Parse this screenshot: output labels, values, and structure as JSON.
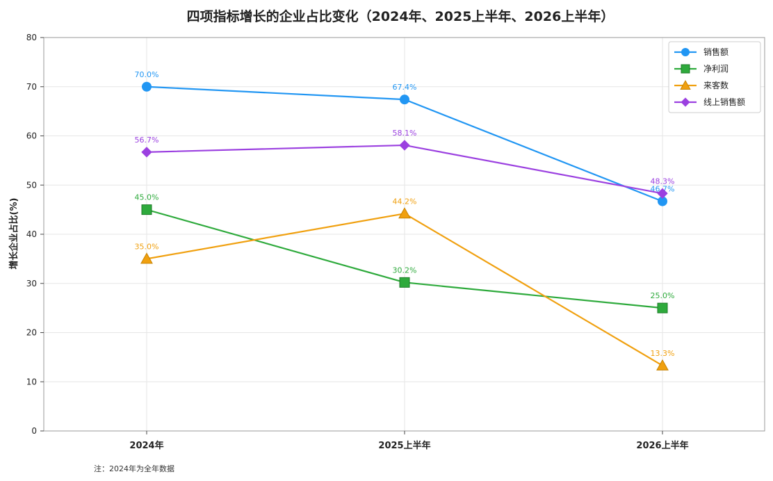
{
  "note": "注：2024年为全年数据",
  "chart_data": {
    "type": "line",
    "title": "四项指标增长的企业占比变化（2024年、2025上半年、2026上半年）",
    "ylabel": "增长企业占比(%)",
    "xlabel": "",
    "categories": [
      "2024年",
      "2025上半年",
      "2026上半年"
    ],
    "ylim": [
      0,
      80
    ],
    "yticks": [
      0,
      10,
      20,
      30,
      40,
      50,
      60,
      70,
      80
    ],
    "grid": true,
    "legend_position": "top-right",
    "series": [
      {
        "name": "销售额",
        "values": [
          70.0,
          67.4,
          46.7
        ],
        "labels": [
          "70.0%",
          "67.4%",
          "46.7%"
        ],
        "color": "#2196F3",
        "marker": "circle"
      },
      {
        "name": "净利润",
        "values": [
          45.0,
          30.2,
          25.0
        ],
        "labels": [
          "45.0%",
          "30.2%",
          "25.0%"
        ],
        "color": "#2EAA3C",
        "marker": "square"
      },
      {
        "name": "来客数",
        "values": [
          35.0,
          44.2,
          13.3
        ],
        "labels": [
          "35.0%",
          "44.2%",
          "13.3%"
        ],
        "color": "#F0A00F",
        "marker": "triangle"
      },
      {
        "name": "线上销售额",
        "values": [
          56.7,
          58.1,
          48.3
        ],
        "labels": [
          "56.7%",
          "58.1%",
          "48.3%"
        ],
        "color": "#9B40E0",
        "marker": "diamond"
      }
    ]
  }
}
